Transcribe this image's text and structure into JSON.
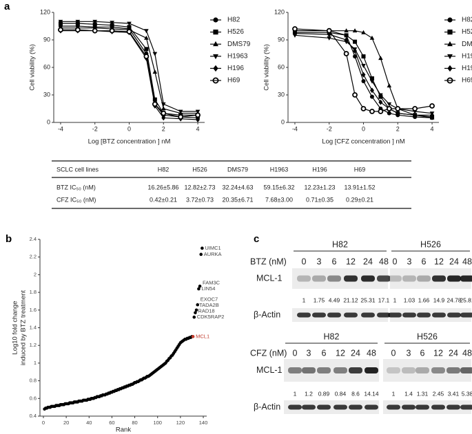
{
  "panel_labels": [
    "a",
    "b",
    "c"
  ],
  "chart_data": [
    {
      "type": "line",
      "x": [
        -4,
        -3,
        -2,
        -1,
        0,
        1,
        1.5,
        2,
        3,
        4
      ],
      "xlabel": "Log [BTZ concentration ] nM",
      "ylabel": "Cell viability (%)",
      "xlim": [
        -4.4,
        4.4
      ],
      "xticks": [
        -4,
        -2,
        0,
        2,
        4
      ],
      "ylim": [
        0,
        120
      ],
      "yticks": [
        0,
        30,
        60,
        90,
        120
      ],
      "legend": "right",
      "series": [
        {
          "name": "H82",
          "color": "#000000",
          "marker": "circle",
          "values": [
            105,
            105,
            104,
            104,
            102,
            75,
            20,
            8,
            6,
            5
          ]
        },
        {
          "name": "H526",
          "color": "#000000",
          "marker": "square",
          "values": [
            108,
            108,
            107,
            106,
            104,
            80,
            25,
            10,
            8,
            8
          ]
        },
        {
          "name": "DMS79",
          "color": "#000000",
          "marker": "triangle-up",
          "values": [
            103,
            103,
            103,
            102,
            101,
            92,
            55,
            15,
            10,
            10
          ]
        },
        {
          "name": "H1963",
          "color": "#000000",
          "marker": "triangle-down",
          "values": [
            110,
            110,
            110,
            109,
            108,
            100,
            75,
            20,
            12,
            12
          ]
        },
        {
          "name": "H196",
          "color": "#000000",
          "marker": "diamond",
          "values": [
            100,
            100,
            100,
            99,
            98,
            70,
            18,
            5,
            4,
            3
          ]
        },
        {
          "name": "H69",
          "color": "#000000",
          "marker": "circle-open",
          "values": [
            101,
            101,
            100,
            100,
            99,
            72,
            20,
            10,
            6,
            8
          ]
        }
      ]
    },
    {
      "type": "line",
      "x": [
        -4,
        -2,
        -1,
        -0.5,
        0,
        0.5,
        1,
        1.5,
        2,
        3,
        4
      ],
      "xlabel": "Log [CFZ concentration ] nM",
      "ylabel": "Cell viability (%)",
      "xlim": [
        -4.4,
        4.4
      ],
      "xticks": [
        -4,
        -2,
        0,
        2,
        4
      ],
      "ylim": [
        0,
        120
      ],
      "yticks": [
        0,
        30,
        60,
        90,
        120
      ],
      "legend": "right",
      "series": [
        {
          "name": "H82",
          "color": "#000000",
          "marker": "circle",
          "values": [
            100,
            100,
            95,
            72,
            45,
            28,
            15,
            10,
            8,
            6,
            5
          ]
        },
        {
          "name": "H526",
          "color": "#000000",
          "marker": "square",
          "values": [
            98,
            98,
            95,
            88,
            72,
            48,
            28,
            15,
            10,
            8,
            6
          ]
        },
        {
          "name": "DMS79",
          "color": "#000000",
          "marker": "triangle-up",
          "values": [
            100,
            100,
            100,
            100,
            98,
            92,
            70,
            40,
            15,
            8,
            5
          ]
        },
        {
          "name": "H1963",
          "color": "#000000",
          "marker": "triangle-down",
          "values": [
            95,
            92,
            88,
            80,
            62,
            45,
            30,
            20,
            15,
            12,
            10
          ]
        },
        {
          "name": "H196",
          "color": "#000000",
          "marker": "diamond",
          "values": [
            97,
            96,
            90,
            78,
            52,
            35,
            22,
            15,
            10,
            8,
            8
          ]
        },
        {
          "name": "H69",
          "color": "#000000",
          "marker": "circle-open",
          "values": [
            102,
            100,
            75,
            30,
            15,
            12,
            12,
            15,
            15,
            15,
            18
          ]
        }
      ]
    },
    {
      "type": "scatter",
      "xlabel": "Rank",
      "ylabel": [
        "Log10 fold change",
        "induced by BTZ treatment"
      ],
      "xlim": [
        -3,
        143
      ],
      "xticks": [
        0,
        20,
        40,
        60,
        80,
        100,
        120,
        140
      ],
      "ylim": [
        0.4,
        2.4
      ],
      "yticks": [
        0.4,
        0.6,
        0.8,
        1,
        1.2,
        1.4,
        1.6,
        1.8,
        2,
        2.2,
        2.4
      ],
      "color": "#000000",
      "highlight": "MCL1",
      "highlight_color": "#c0392b",
      "x": [
        1,
        2,
        3,
        4,
        5,
        6,
        7,
        8,
        9,
        10,
        11,
        12,
        13,
        14,
        15,
        16,
        17,
        18,
        19,
        20,
        21,
        22,
        23,
        24,
        25,
        26,
        27,
        28,
        29,
        30,
        31,
        32,
        33,
        34,
        35,
        36,
        37,
        38,
        39,
        40,
        41,
        42,
        43,
        44,
        45,
        46,
        47,
        48,
        49,
        50,
        51,
        52,
        53,
        54,
        55,
        56,
        57,
        58,
        59,
        60,
        61,
        62,
        63,
        64,
        65,
        66,
        67,
        68,
        69,
        70,
        71,
        72,
        73,
        74,
        75,
        76,
        77,
        78,
        79,
        80,
        81,
        82,
        83,
        84,
        85,
        86,
        87,
        88,
        89,
        90,
        91,
        92,
        93,
        94,
        95,
        96,
        97,
        98,
        99,
        100,
        101,
        102,
        103,
        104,
        105,
        106,
        107,
        108,
        109,
        110,
        111,
        112,
        113,
        114,
        115,
        116,
        117,
        118,
        119,
        120,
        121,
        122,
        123,
        124,
        125,
        126,
        127,
        128,
        129,
        130,
        131,
        132,
        133,
        134,
        135,
        136,
        137,
        138,
        139
      ],
      "values": [
        0.48,
        0.49,
        0.49,
        0.5,
        0.5,
        0.5,
        0.51,
        0.51,
        0.51,
        0.51,
        0.52,
        0.52,
        0.52,
        0.52,
        0.53,
        0.53,
        0.53,
        0.53,
        0.54,
        0.54,
        0.54,
        0.54,
        0.55,
        0.55,
        0.55,
        0.55,
        0.56,
        0.56,
        0.56,
        0.56,
        0.57,
        0.57,
        0.57,
        0.57,
        0.58,
        0.58,
        0.58,
        0.58,
        0.59,
        0.59,
        0.59,
        0.6,
        0.6,
        0.6,
        0.61,
        0.61,
        0.62,
        0.62,
        0.62,
        0.63,
        0.63,
        0.64,
        0.64,
        0.64,
        0.65,
        0.65,
        0.66,
        0.66,
        0.67,
        0.67,
        0.68,
        0.68,
        0.69,
        0.69,
        0.7,
        0.7,
        0.71,
        0.71,
        0.72,
        0.72,
        0.73,
        0.73,
        0.74,
        0.74,
        0.75,
        0.75,
        0.76,
        0.76,
        0.77,
        0.78,
        0.78,
        0.79,
        0.79,
        0.8,
        0.81,
        0.81,
        0.82,
        0.83,
        0.83,
        0.84,
        0.85,
        0.85,
        0.86,
        0.87,
        0.88,
        0.89,
        0.9,
        0.91,
        0.92,
        0.93,
        0.94,
        0.95,
        0.96,
        0.97,
        0.98,
        0.99,
        1.0,
        1.02,
        1.03,
        1.05,
        1.06,
        1.08,
        1.09,
        1.11,
        1.13,
        1.15,
        1.17,
        1.19,
        1.21,
        1.23,
        1.24,
        1.25,
        1.26,
        1.27,
        1.27,
        1.28,
        1.28,
        1.29,
        1.29,
        1.3,
        1.3,
        1.52,
        1.57,
        1.6,
        1.66,
        1.84,
        1.87,
        2.23,
        2.3
      ],
      "labels": [
        null,
        null,
        null,
        null,
        null,
        null,
        null,
        null,
        null,
        null,
        null,
        null,
        null,
        null,
        null,
        null,
        null,
        null,
        null,
        null,
        null,
        null,
        null,
        null,
        null,
        null,
        null,
        null,
        null,
        null,
        null,
        null,
        null,
        null,
        null,
        null,
        null,
        null,
        null,
        null,
        null,
        null,
        null,
        null,
        null,
        null,
        null,
        null,
        null,
        null,
        null,
        null,
        null,
        null,
        null,
        null,
        null,
        null,
        null,
        null,
        null,
        null,
        null,
        null,
        null,
        null,
        null,
        null,
        null,
        null,
        null,
        null,
        null,
        null,
        null,
        null,
        null,
        null,
        null,
        null,
        null,
        null,
        null,
        null,
        null,
        null,
        null,
        null,
        null,
        null,
        null,
        null,
        null,
        null,
        null,
        null,
        null,
        null,
        null,
        null,
        null,
        null,
        null,
        null,
        null,
        null,
        null,
        null,
        null,
        null,
        null,
        null,
        null,
        null,
        null,
        null,
        null,
        null,
        null,
        null,
        null,
        null,
        null,
        null,
        null,
        null,
        null,
        null,
        null,
        null,
        "MCL1",
        "CDK5RAP2",
        "RAD18",
        "TADA2B",
        "EXOC7",
        "LIN54",
        "FAM3C",
        "AURKA",
        "UIMC1"
      ]
    }
  ],
  "table": {
    "header": [
      "SCLC cell lines",
      "H82",
      "H526",
      "DMS79",
      "H1963",
      "H196",
      "H69"
    ],
    "rows": [
      [
        "BTZ  IC₅₀ (nM)",
        "16.26±5.86",
        "12.82±2.73",
        "32.24±4.63",
        "59.15±6.32",
        "12.23±1.23",
        "13.91±1.52"
      ],
      [
        "CFZ  IC₅₀ (nM)",
        "0.42±0.21",
        "3.72±0.73",
        "20.35±6.71",
        "7.68±3.00",
        "0.71±0.35",
        "0.29±0.21"
      ]
    ]
  },
  "blots": [
    {
      "treatment": "BTZ (nM)",
      "protein": "MCL-1",
      "control": "β-Actin",
      "groups": [
        {
          "cell_line": "H82",
          "lanes": [
            0,
            3,
            6,
            12,
            24,
            48
          ],
          "quant": [
            1,
            1.75,
            4.49,
            21.12,
            25.31,
            17.1
          ]
        },
        {
          "cell_line": "H526",
          "lanes": [
            0,
            3,
            6,
            12,
            24,
            48
          ],
          "quant": [
            1,
            1.03,
            1.66,
            14.9,
            24.78,
            25.81
          ]
        }
      ]
    },
    {
      "treatment": "CFZ (nM)",
      "protein": "MCL-1",
      "control": "β-Actin",
      "groups": [
        {
          "cell_line": "H82",
          "lanes": [
            0,
            3,
            6,
            12,
            24,
            48
          ],
          "quant": [
            1,
            1.2,
            0.89,
            0.84,
            8.6,
            14.14
          ]
        },
        {
          "cell_line": "H526",
          "lanes": [
            0,
            3,
            6,
            12,
            24,
            48
          ],
          "quant": [
            1,
            1.4,
            1.31,
            2.45,
            3.41,
            5.38
          ]
        }
      ]
    }
  ]
}
